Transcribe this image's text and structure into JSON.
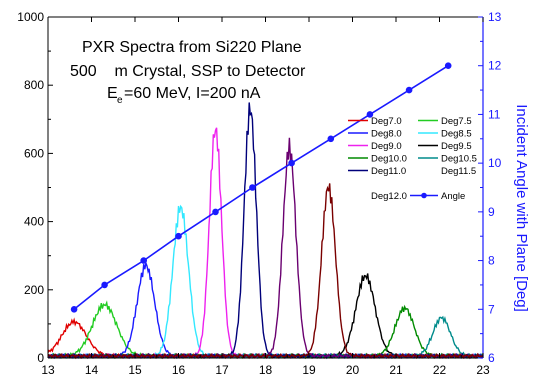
{
  "chart_data": {
    "type": "line",
    "annotation_lines": [
      "PXR Spectra from Si220 Plane",
      "500    m Crystal, SSP to Detector",
      "E",
      "e",
      "=60 MeV, I=200 nA"
    ],
    "xlabel": "",
    "ylabel_left": "",
    "ylabel_right": "Incident Angle with Plane [Deg]",
    "xlim": [
      13,
      23
    ],
    "ylim_left": [
      0,
      1000
    ],
    "ylim_right": [
      6,
      13
    ],
    "x_ticks": [
      "13",
      "14",
      "15",
      "16",
      "17",
      "18",
      "19",
      "20",
      "21",
      "22",
      "23"
    ],
    "y_left_ticks": [
      "0",
      "200",
      "400",
      "600",
      "800",
      "1000"
    ],
    "y_right_ticks": [
      "6",
      "7",
      "8",
      "9",
      "10",
      "11",
      "12",
      "13"
    ],
    "legend_position": "right",
    "series": [
      {
        "name": "Deg7.0",
        "color": "#e00000",
        "center": 13.6,
        "peak": 100,
        "width": 0.28
      },
      {
        "name": "Deg7.5",
        "color": "#22cc22",
        "center": 14.3,
        "peak": 150,
        "width": 0.28
      },
      {
        "name": "Deg8.0",
        "color": "#1a1aff",
        "center": 15.25,
        "peak": 265,
        "width": 0.2
      },
      {
        "name": "Deg8.5",
        "color": "#33e8ff",
        "center": 16.05,
        "peak": 435,
        "width": 0.18
      },
      {
        "name": "Deg9.0",
        "color": "#ee22ee",
        "center": 16.85,
        "peak": 665,
        "width": 0.14
      },
      {
        "name": "Deg9.5",
        "color": "#000000",
        "center": 20.3,
        "peak": 235,
        "width": 0.22
      },
      {
        "name": "Deg10.0",
        "color": "#008a00",
        "center": 21.2,
        "peak": 140,
        "width": 0.22
      },
      {
        "name": "Deg10.5",
        "color": "#008b8b",
        "center": 22.05,
        "peak": 112,
        "width": 0.2
      },
      {
        "name": "Deg11.0",
        "color": "#00007a",
        "center": 17.65,
        "peak": 725,
        "width": 0.14
      },
      {
        "name": "Deg11.5",
        "color": "#6a0070",
        "center": 18.55,
        "peak": 610,
        "width": 0.15
      },
      {
        "name": "Deg12.0",
        "color": "#7a0000",
        "center": 19.45,
        "peak": 495,
        "width": 0.16
      },
      {
        "name": "Angle",
        "color": "#1a1aff",
        "axis": "right",
        "x": [
          13.6,
          14.3,
          15.2,
          16.0,
          16.85,
          17.7,
          18.6,
          19.5,
          20.4,
          21.3,
          22.2
        ],
        "y": [
          7.0,
          7.5,
          8.0,
          8.5,
          9.0,
          9.5,
          10.0,
          10.5,
          11.0,
          11.5,
          12.0
        ]
      }
    ],
    "colors": {
      "axis_right": "#1a1aff",
      "axis_left": "#000000"
    }
  }
}
